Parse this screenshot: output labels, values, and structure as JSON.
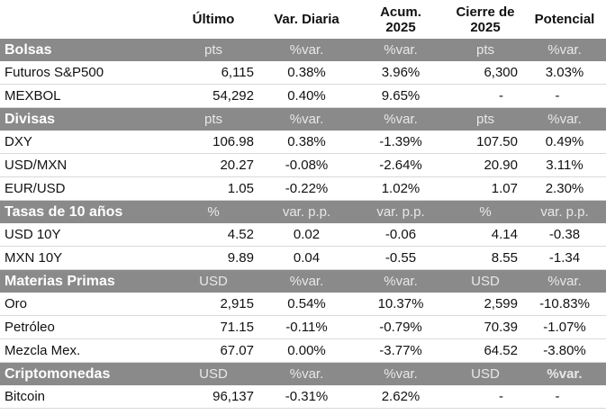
{
  "headers": [
    "",
    "Último",
    "Var. Diaria",
    "Acum.\n2025",
    "Cierre de\n2025",
    "Potencial"
  ],
  "sections": [
    {
      "name": "Bolsas",
      "units": [
        "pts",
        "%var.",
        "%var.",
        "pts",
        "%var."
      ],
      "rows": [
        {
          "name": "Futuros S&P500",
          "ultimo": "6,115",
          "diaria": "0.38%",
          "diaria_sign": "pos",
          "acum": "3.96%",
          "acum_sign": "pos",
          "cierre": "6,300",
          "potencial": "3.03%",
          "potencial_sign": "pos"
        },
        {
          "name": "MEXBOL",
          "ultimo": "54,292",
          "diaria": "0.40%",
          "diaria_sign": "pos",
          "acum": "9.65%",
          "acum_sign": "pos",
          "cierre": "-",
          "potencial": "-",
          "potencial_sign": "neu"
        }
      ]
    },
    {
      "name": "Divisas",
      "units": [
        "pts",
        "%var.",
        "%var.",
        "pts",
        "%var."
      ],
      "rows": [
        {
          "name": "DXY",
          "ultimo": "106.98",
          "diaria": "0.38%",
          "diaria_sign": "pos",
          "acum": "-1.39%",
          "acum_sign": "neg",
          "cierre": "107.50",
          "potencial": "0.49%",
          "potencial_sign": "pos"
        },
        {
          "name": "USD/MXN",
          "ultimo": "20.27",
          "diaria": "-0.08%",
          "diaria_sign": "pos",
          "acum": "-2.64%",
          "acum_sign": "pos",
          "cierre": "20.90",
          "potencial": "3.11%",
          "potencial_sign": "neg"
        },
        {
          "name": "EUR/USD",
          "ultimo": "1.05",
          "diaria": "-0.22%",
          "diaria_sign": "neg",
          "acum": "1.02%",
          "acum_sign": "pos",
          "cierre": "1.07",
          "potencial": "2.30%",
          "potencial_sign": "pos"
        }
      ]
    },
    {
      "name": "Tasas de 10 años",
      "units": [
        "%",
        "var. p.p.",
        "var. p.p.",
        "%",
        "var. p.p."
      ],
      "rows": [
        {
          "name": "USD 10Y",
          "ultimo": "4.52",
          "diaria": "0.02",
          "diaria_sign": "neg",
          "acum": "-0.06",
          "acum_sign": "pos",
          "cierre": "4.14",
          "potencial": "-0.38",
          "potencial_sign": "pos"
        },
        {
          "name": "MXN 10Y",
          "ultimo": "9.89",
          "diaria": "0.04",
          "diaria_sign": "neg",
          "acum": "-0.55",
          "acum_sign": "pos",
          "cierre": "8.55",
          "potencial": "-1.34",
          "potencial_sign": "pos"
        }
      ]
    },
    {
      "name": "Materias Primas",
      "units": [
        "USD",
        "%var.",
        "%var.",
        "USD",
        "%var."
      ],
      "rows": [
        {
          "name": "Oro",
          "ultimo": "2,915",
          "diaria": "0.54%",
          "diaria_sign": "pos",
          "acum": "10.37%",
          "acum_sign": "pos",
          "cierre": "2,599",
          "potencial": "-10.83%",
          "potencial_sign": "neg"
        },
        {
          "name": "Petróleo",
          "ultimo": "71.15",
          "diaria": "-0.11%",
          "diaria_sign": "neg",
          "acum": "-0.79%",
          "acum_sign": "neg",
          "cierre": "70.39",
          "potencial": "-1.07%",
          "potencial_sign": "neg"
        },
        {
          "name": "Mezcla Mex.",
          "ultimo": "67.07",
          "diaria": "0.00%",
          "diaria_sign": "neu",
          "acum": "-3.77%",
          "acum_sign": "neg",
          "cierre": "64.52",
          "potencial": "-3.80%",
          "potencial_sign": "neg"
        }
      ]
    },
    {
      "name": "Criptomonedas",
      "units": [
        "USD",
        "%var.",
        "%var.",
        "USD",
        "%var."
      ],
      "units_bold_last": true,
      "rows": [
        {
          "name": "Bitcoin",
          "ultimo": "96,137",
          "diaria": "-0.31%",
          "diaria_sign": "neg",
          "acum": "2.62%",
          "acum_sign": "pos",
          "cierre": "-",
          "potencial": "-",
          "potencial_sign": "neu"
        }
      ]
    }
  ],
  "colors": {
    "positive": "#1fa03a",
    "negative": "#e02020",
    "section_bg": "#8a8a8a"
  }
}
